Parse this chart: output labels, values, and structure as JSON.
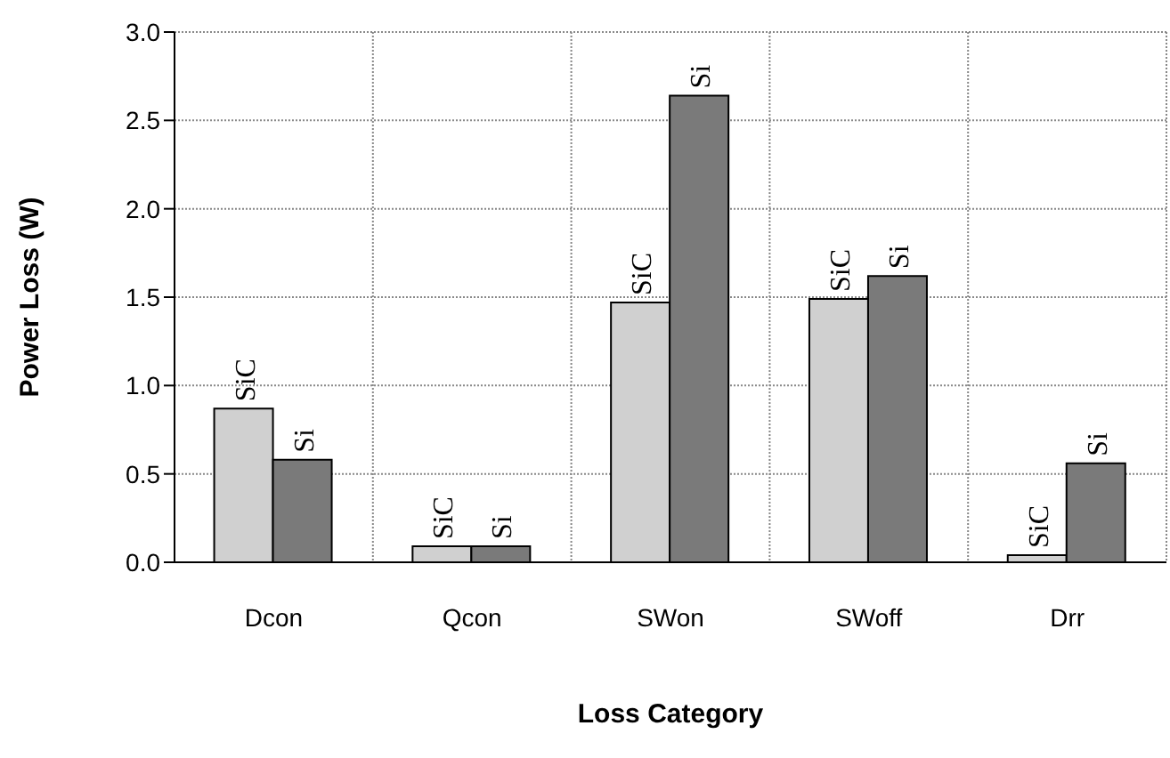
{
  "chart_data": {
    "type": "bar",
    "xlabel": "Loss Category",
    "ylabel": "Power Loss (W)",
    "categories": [
      "Dcon",
      "Qcon",
      "SWon",
      "SWoff",
      "Drr"
    ],
    "series": [
      {
        "name": "SiC",
        "color": "#d0d0d0",
        "values": [
          0.87,
          0.09,
          1.47,
          1.49,
          0.04
        ]
      },
      {
        "name": "Si",
        "color": "#7a7a7a",
        "values": [
          0.58,
          0.09,
          2.64,
          1.62,
          0.56
        ]
      }
    ],
    "ylim": [
      0,
      3
    ],
    "yticks": [
      {
        "value": 0,
        "label": "0.0"
      },
      {
        "value": 0.5,
        "label": "0.5"
      },
      {
        "value": 1,
        "label": "1.0"
      },
      {
        "value": 1.5,
        "label": "1.5"
      },
      {
        "value": 2,
        "label": "2.0"
      },
      {
        "value": 2.5,
        "label": "2.5"
      },
      {
        "value": 3,
        "label": "3.0"
      }
    ],
    "grid": true
  }
}
